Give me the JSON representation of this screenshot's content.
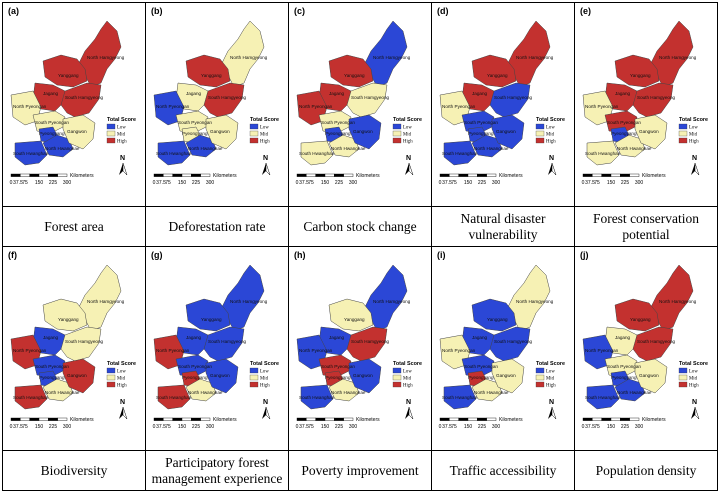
{
  "legend": {
    "title": "Total Score",
    "items": [
      {
        "label": "Low",
        "color": "#2b47d6"
      },
      {
        "label": "Mid",
        "color": "#f6f1b4"
      },
      {
        "label": "High",
        "color": "#c3312f"
      }
    ]
  },
  "scale": {
    "ticks": [
      "0",
      "37.5",
      "75",
      "150",
      "225",
      "300"
    ],
    "unit": "Kilometers"
  },
  "north_label": "N",
  "colors": {
    "L": "#2b47d6",
    "M": "#f6f1b4",
    "H": "#c3312f"
  },
  "province_labels": {
    "NH": "North Hamgyeong",
    "YG": "Yanggang",
    "JG": "Jagang",
    "SH": "South Hamgyeong",
    "NP": "North Pyeongan",
    "SP": "South Pyeongan",
    "PY": "Pyeongyang",
    "NHw": "North Hwanghae",
    "SHw": "South Hwanghae",
    "GW": "Gangwon"
  },
  "panels": [
    {
      "letter": "(a)",
      "caption": "Forest area",
      "fills": {
        "NH": "H",
        "YG": "H",
        "JG": "H",
        "SH": "H",
        "NP": "M",
        "SP": "M",
        "PY": "L",
        "NHw": "L",
        "SHw": "L",
        "GW": "M"
      }
    },
    {
      "letter": "(b)",
      "caption": "Deforestation rate",
      "fills": {
        "NH": "M",
        "YG": "H",
        "JG": "M",
        "SH": "H",
        "NP": "L",
        "SP": "M",
        "PY": "M",
        "NHw": "L",
        "SHw": "L",
        "GW": "M"
      }
    },
    {
      "letter": "(c)",
      "caption": "Carbon stock change",
      "fills": {
        "NH": "L",
        "YG": "H",
        "JG": "H",
        "SH": "M",
        "NP": "H",
        "SP": "M",
        "PY": "L",
        "NHw": "M",
        "SHw": "M",
        "GW": "L"
      }
    },
    {
      "letter": "(d)",
      "caption": "Natural disaster\nvulnerability",
      "fills": {
        "NH": "H",
        "YG": "H",
        "JG": "H",
        "SH": "L",
        "NP": "M",
        "SP": "L",
        "PY": "L",
        "NHw": "L",
        "SHw": "L",
        "GW": "L"
      }
    },
    {
      "letter": "(e)",
      "caption": "Forest conservation\npotential",
      "fills": {
        "NH": "H",
        "YG": "H",
        "JG": "H",
        "SH": "H",
        "NP": "M",
        "SP": "H",
        "PY": "L",
        "NHw": "M",
        "SHw": "M",
        "GW": "M"
      }
    },
    {
      "letter": "(f)",
      "caption": "Biodiversity",
      "fills": {
        "NH": "M",
        "YG": "M",
        "JG": "L",
        "SH": "M",
        "NP": "H",
        "SP": "L",
        "PY": "L",
        "NHw": "M",
        "SHw": "H",
        "GW": "H"
      }
    },
    {
      "letter": "(g)",
      "caption": "Participatory forest\nmanagement experience",
      "fills": {
        "NH": "L",
        "YG": "L",
        "JG": "L",
        "SH": "L",
        "NP": "H",
        "SP": "L",
        "PY": "H",
        "NHw": "M",
        "SHw": "H",
        "GW": "L"
      }
    },
    {
      "letter": "(h)",
      "caption": "Poverty improvement",
      "fills": {
        "NH": "L",
        "YG": "M",
        "JG": "L",
        "SH": "H",
        "NP": "L",
        "SP": "H",
        "PY": "H",
        "NHw": "M",
        "SHw": "L",
        "GW": "L"
      }
    },
    {
      "letter": "(i)",
      "caption": "Traffic accessibility",
      "fills": {
        "NH": "M",
        "YG": "L",
        "JG": "L",
        "SH": "L",
        "NP": "M",
        "SP": "L",
        "PY": "H",
        "NHw": "M",
        "SHw": "L",
        "GW": "M"
      }
    },
    {
      "letter": "(j)",
      "caption": "Population density",
      "fills": {
        "NH": "H",
        "YG": "H",
        "JG": "M",
        "SH": "H",
        "NP": "L",
        "SP": "M",
        "PY": "L",
        "NHw": "L",
        "SHw": "L",
        "GW": "M"
      }
    }
  ]
}
